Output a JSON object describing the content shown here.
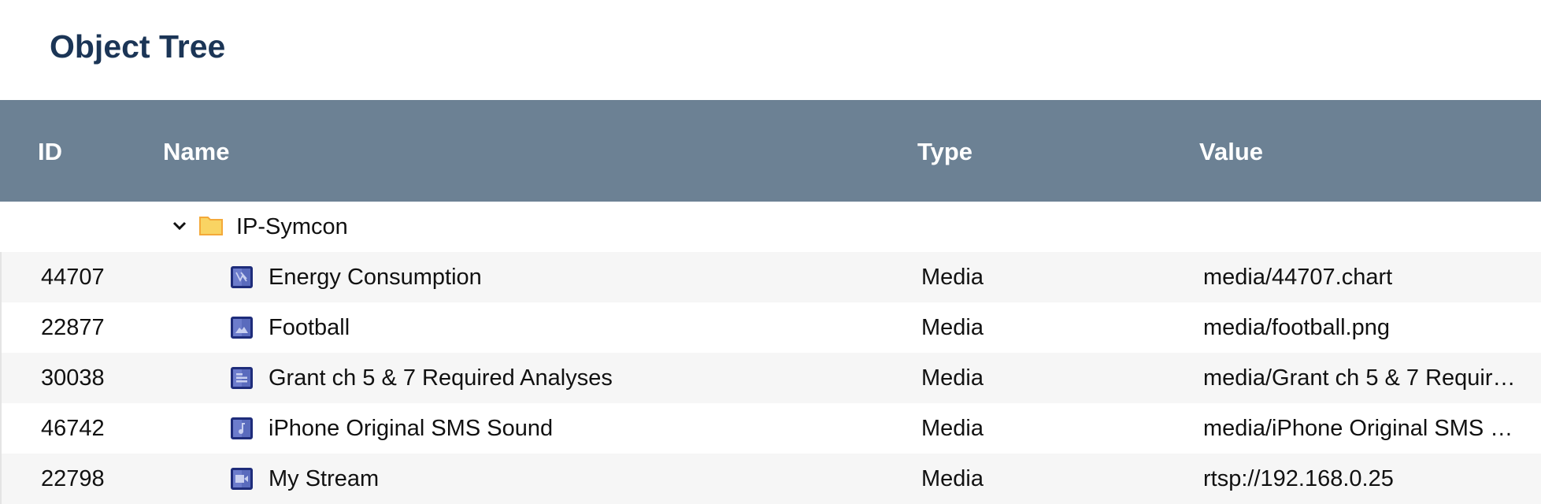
{
  "title": "Object Tree",
  "columns": {
    "id": "ID",
    "name": "Name",
    "type": "Type",
    "value": "Value"
  },
  "root": {
    "name": "IP-Symcon",
    "icon": "folder-icon",
    "expanded": true
  },
  "rows": [
    {
      "id": "44707",
      "name": "Energy Consumption",
      "type": "Media",
      "value": "media/44707.chart",
      "icon": "chart-icon"
    },
    {
      "id": "22877",
      "name": "Football",
      "type": "Media",
      "value": "media/football.png",
      "icon": "image-icon"
    },
    {
      "id": "30038",
      "name": "Grant ch 5 & 7 Required Analyses",
      "type": "Media",
      "value": "media/Grant ch 5 & 7 Requir…",
      "icon": "document-icon"
    },
    {
      "id": "46742",
      "name": "iPhone Original SMS Sound",
      "type": "Media",
      "value": "media/iPhone Original SMS …",
      "icon": "sound-icon"
    },
    {
      "id": "22798",
      "name": "My Stream",
      "type": "Media",
      "value": "rtsp://192.168.0.25",
      "icon": "video-icon"
    }
  ],
  "colors": {
    "header": "#6c8194",
    "title": "#1b3556",
    "media_icon": "#5a6bbd"
  }
}
